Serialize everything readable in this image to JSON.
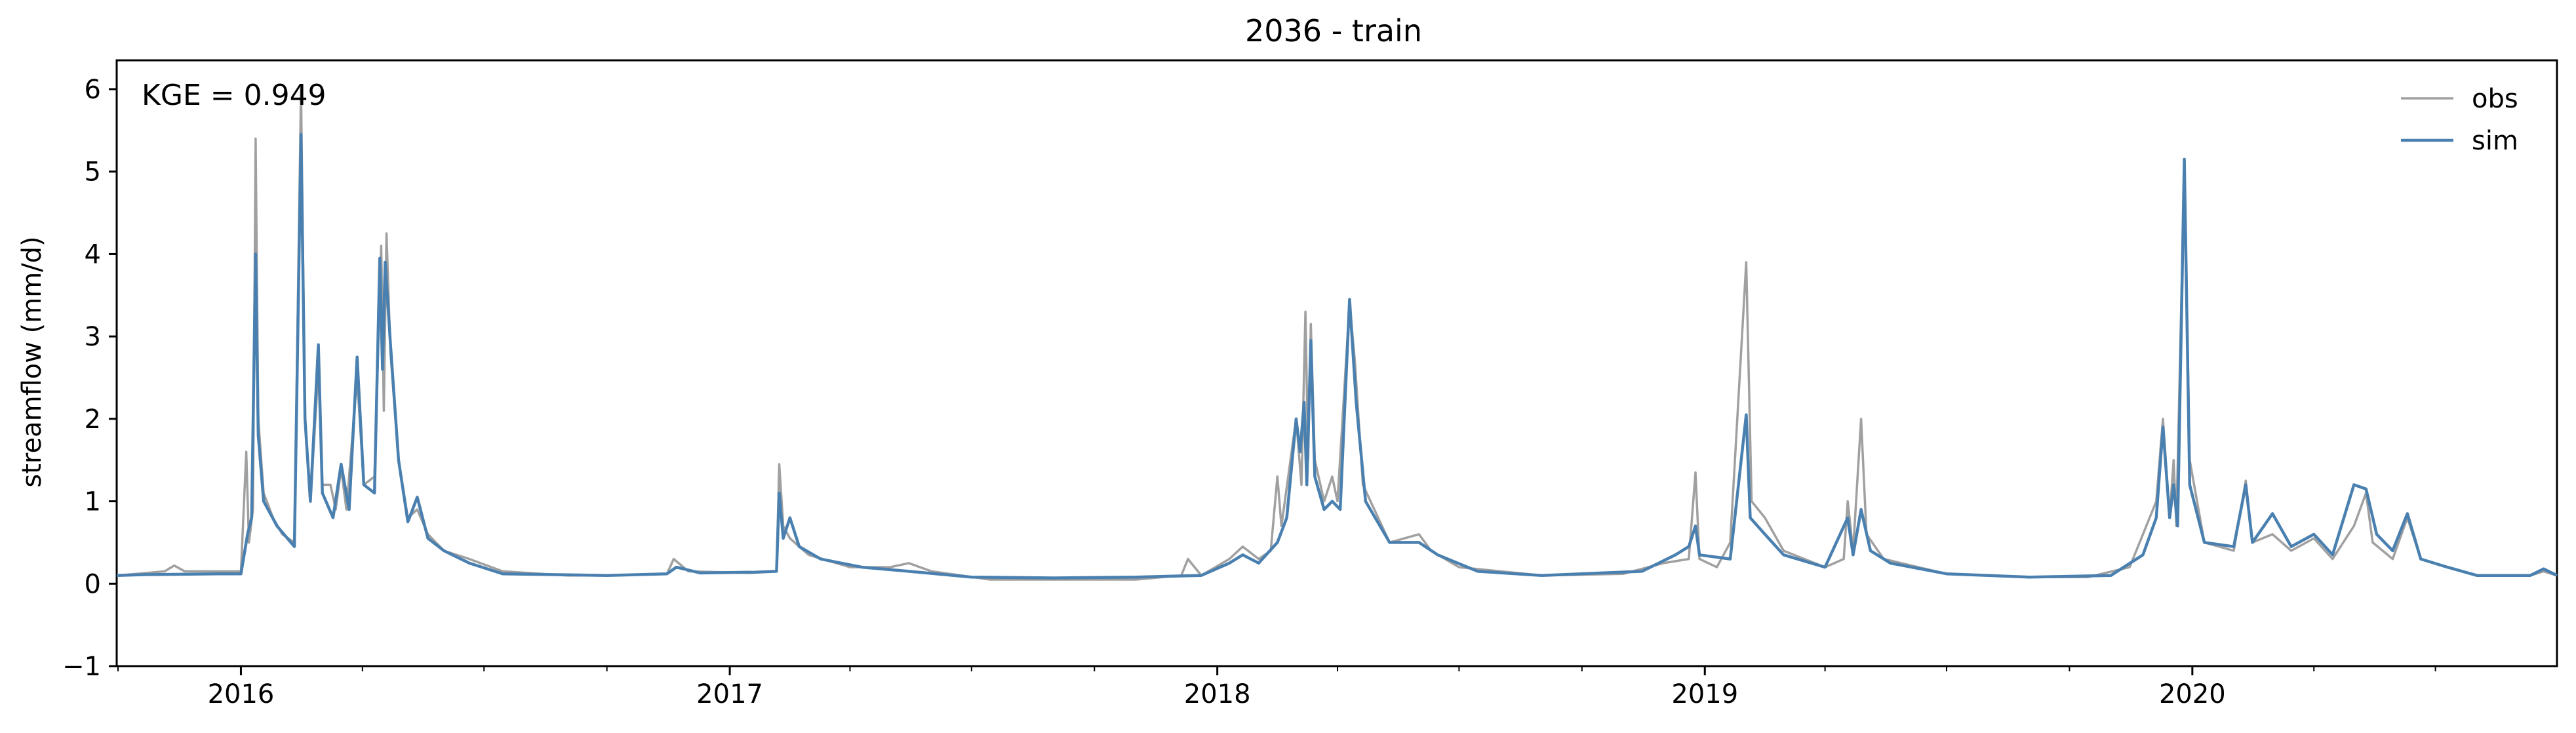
{
  "chart_data": {
    "type": "line",
    "title": "2036 - train",
    "ylabel": "streamflow (mm/d)",
    "xlabel": "",
    "annotation": "KGE = 0.949",
    "xlim": [
      "2015-09-30",
      "2020-09-30"
    ],
    "ylim": [
      -1,
      6.35
    ],
    "yticks": [
      -1,
      0,
      1,
      2,
      3,
      4,
      5,
      6
    ],
    "ytick_labels": [
      "−1",
      "0",
      "1",
      "2",
      "3",
      "4",
      "5",
      "6"
    ],
    "xticks": [
      "2016-01-01",
      "2017-01-01",
      "2018-01-01",
      "2019-01-01",
      "2020-01-01"
    ],
    "xtick_labels": [
      "2016",
      "2017",
      "2018",
      "2019",
      "2020"
    ],
    "legend_position": "top-right",
    "grid": false,
    "series": [
      {
        "name": "obs",
        "color": "#a0a0a0",
        "points": [
          [
            "2015-09-30",
            0.1
          ],
          [
            "2015-10-15",
            0.12
          ],
          [
            "2015-11-05",
            0.15
          ],
          [
            "2015-11-12",
            0.22
          ],
          [
            "2015-11-20",
            0.15
          ],
          [
            "2015-12-10",
            0.15
          ],
          [
            "2016-01-01",
            0.15
          ],
          [
            "2016-01-05",
            1.6
          ],
          [
            "2016-01-07",
            0.5
          ],
          [
            "2016-01-10",
            0.9
          ],
          [
            "2016-01-12",
            5.4
          ],
          [
            "2016-01-14",
            2.0
          ],
          [
            "2016-01-18",
            1.1
          ],
          [
            "2016-01-25",
            0.8
          ],
          [
            "2016-02-01",
            0.6
          ],
          [
            "2016-02-10",
            0.5
          ],
          [
            "2016-02-15",
            6.0
          ],
          [
            "2016-02-18",
            2.0
          ],
          [
            "2016-02-22",
            1.0
          ],
          [
            "2016-02-28",
            2.6
          ],
          [
            "2016-03-02",
            1.2
          ],
          [
            "2016-03-08",
            1.2
          ],
          [
            "2016-03-12",
            0.9
          ],
          [
            "2016-03-16",
            1.4
          ],
          [
            "2016-03-20",
            0.9
          ],
          [
            "2016-03-28",
            2.5
          ],
          [
            "2016-04-02",
            1.2
          ],
          [
            "2016-04-10",
            1.3
          ],
          [
            "2016-04-15",
            4.1
          ],
          [
            "2016-04-17",
            2.1
          ],
          [
            "2016-04-19",
            4.25
          ],
          [
            "2016-04-22",
            2.8
          ],
          [
            "2016-04-28",
            1.5
          ],
          [
            "2016-05-05",
            0.8
          ],
          [
            "2016-05-12",
            0.9
          ],
          [
            "2016-05-20",
            0.6
          ],
          [
            "2016-06-01",
            0.4
          ],
          [
            "2016-06-20",
            0.3
          ],
          [
            "2016-07-15",
            0.15
          ],
          [
            "2016-09-01",
            0.1
          ],
          [
            "2016-10-01",
            0.1
          ],
          [
            "2016-11-15",
            0.12
          ],
          [
            "2016-11-20",
            0.3
          ],
          [
            "2016-12-01",
            0.15
          ],
          [
            "2017-01-15",
            0.13
          ],
          [
            "2017-02-05",
            0.15
          ],
          [
            "2017-02-07",
            1.45
          ],
          [
            "2017-02-10",
            0.7
          ],
          [
            "2017-02-15",
            0.55
          ],
          [
            "2017-03-01",
            0.35
          ],
          [
            "2017-04-01",
            0.2
          ],
          [
            "2017-05-01",
            0.2
          ],
          [
            "2017-05-15",
            0.25
          ],
          [
            "2017-06-01",
            0.15
          ],
          [
            "2017-07-15",
            0.05
          ],
          [
            "2017-09-01",
            0.05
          ],
          [
            "2017-11-01",
            0.05
          ],
          [
            "2017-12-05",
            0.1
          ],
          [
            "2017-12-10",
            0.3
          ],
          [
            "2017-12-20",
            0.1
          ],
          [
            "2018-01-10",
            0.3
          ],
          [
            "2018-01-20",
            0.45
          ],
          [
            "2018-02-01",
            0.3
          ],
          [
            "2018-02-10",
            0.4
          ],
          [
            "2018-02-15",
            1.3
          ],
          [
            "2018-02-18",
            0.7
          ],
          [
            "2018-03-01",
            2.0
          ],
          [
            "2018-03-05",
            1.2
          ],
          [
            "2018-03-08",
            3.3
          ],
          [
            "2018-03-10",
            1.5
          ],
          [
            "2018-03-12",
            3.15
          ],
          [
            "2018-03-15",
            1.5
          ],
          [
            "2018-03-22",
            1.0
          ],
          [
            "2018-03-28",
            1.3
          ],
          [
            "2018-04-01",
            1.0
          ],
          [
            "2018-04-10",
            3.4
          ],
          [
            "2018-04-14",
            2.7
          ],
          [
            "2018-04-20",
            1.2
          ],
          [
            "2018-05-10",
            0.5
          ],
          [
            "2018-06-01",
            0.6
          ],
          [
            "2018-06-10",
            0.4
          ],
          [
            "2018-07-01",
            0.2
          ],
          [
            "2018-09-01",
            0.1
          ],
          [
            "2018-11-01",
            0.12
          ],
          [
            "2018-12-01",
            0.25
          ],
          [
            "2018-12-20",
            0.3
          ],
          [
            "2018-12-25",
            1.35
          ],
          [
            "2018-12-28",
            0.3
          ],
          [
            "2019-01-10",
            0.2
          ],
          [
            "2019-01-20",
            0.5
          ],
          [
            "2019-02-01",
            3.9
          ],
          [
            "2019-02-05",
            1.0
          ],
          [
            "2019-02-15",
            0.8
          ],
          [
            "2019-03-01",
            0.4
          ],
          [
            "2019-04-01",
            0.2
          ],
          [
            "2019-04-15",
            0.3
          ],
          [
            "2019-04-18",
            1.0
          ],
          [
            "2019-04-22",
            0.4
          ],
          [
            "2019-04-28",
            2.0
          ],
          [
            "2019-05-02",
            0.6
          ],
          [
            "2019-05-15",
            0.3
          ],
          [
            "2019-07-01",
            0.12
          ],
          [
            "2019-09-01",
            0.08
          ],
          [
            "2019-10-15",
            0.08
          ],
          [
            "2019-11-15",
            0.2
          ],
          [
            "2019-11-25",
            0.6
          ],
          [
            "2019-12-05",
            1.0
          ],
          [
            "2019-12-10",
            2.0
          ],
          [
            "2019-12-15",
            0.8
          ],
          [
            "2019-12-18",
            1.5
          ],
          [
            "2019-12-20",
            0.7
          ],
          [
            "2019-12-26",
            5.05
          ],
          [
            "2019-12-30",
            1.5
          ],
          [
            "2020-01-10",
            0.5
          ],
          [
            "2020-02-01",
            0.4
          ],
          [
            "2020-02-10",
            1.25
          ],
          [
            "2020-02-15",
            0.5
          ],
          [
            "2020-03-01",
            0.6
          ],
          [
            "2020-03-15",
            0.4
          ],
          [
            "2020-04-01",
            0.55
          ],
          [
            "2020-04-15",
            0.3
          ],
          [
            "2020-05-01",
            0.7
          ],
          [
            "2020-05-10",
            1.1
          ],
          [
            "2020-05-15",
            0.5
          ],
          [
            "2020-05-30",
            0.3
          ],
          [
            "2020-06-10",
            0.8
          ],
          [
            "2020-06-20",
            0.3
          ],
          [
            "2020-07-10",
            0.2
          ],
          [
            "2020-08-01",
            0.1
          ],
          [
            "2020-09-10",
            0.1
          ],
          [
            "2020-09-20",
            0.15
          ],
          [
            "2020-09-30",
            0.1
          ]
        ]
      },
      {
        "name": "sim",
        "color": "#4a80b0",
        "points": [
          [
            "2015-09-30",
            0.1
          ],
          [
            "2015-10-20",
            0.11
          ],
          [
            "2015-12-15",
            0.12
          ],
          [
            "2016-01-01",
            0.12
          ],
          [
            "2016-01-06",
            0.6
          ],
          [
            "2016-01-09",
            0.8
          ],
          [
            "2016-01-12",
            4.0
          ],
          [
            "2016-01-14",
            1.8
          ],
          [
            "2016-01-18",
            1.0
          ],
          [
            "2016-01-28",
            0.7
          ],
          [
            "2016-02-10",
            0.45
          ],
          [
            "2016-02-15",
            5.45
          ],
          [
            "2016-02-18",
            2.0
          ],
          [
            "2016-02-22",
            1.0
          ],
          [
            "2016-02-28",
            2.9
          ],
          [
            "2016-03-02",
            1.1
          ],
          [
            "2016-03-10",
            0.8
          ],
          [
            "2016-03-16",
            1.45
          ],
          [
            "2016-03-22",
            0.9
          ],
          [
            "2016-03-28",
            2.75
          ],
          [
            "2016-04-02",
            1.2
          ],
          [
            "2016-04-10",
            1.1
          ],
          [
            "2016-04-14",
            3.95
          ],
          [
            "2016-04-16",
            2.6
          ],
          [
            "2016-04-18",
            3.9
          ],
          [
            "2016-04-22",
            2.9
          ],
          [
            "2016-04-28",
            1.5
          ],
          [
            "2016-05-05",
            0.75
          ],
          [
            "2016-05-12",
            1.05
          ],
          [
            "2016-05-20",
            0.55
          ],
          [
            "2016-06-01",
            0.4
          ],
          [
            "2016-06-20",
            0.25
          ],
          [
            "2016-07-15",
            0.12
          ],
          [
            "2016-10-01",
            0.1
          ],
          [
            "2016-11-15",
            0.12
          ],
          [
            "2016-11-22",
            0.2
          ],
          [
            "2016-12-10",
            0.13
          ],
          [
            "2017-01-20",
            0.14
          ],
          [
            "2017-02-05",
            0.15
          ],
          [
            "2017-02-07",
            1.1
          ],
          [
            "2017-02-10",
            0.55
          ],
          [
            "2017-02-15",
            0.8
          ],
          [
            "2017-02-22",
            0.45
          ],
          [
            "2017-03-10",
            0.3
          ],
          [
            "2017-04-10",
            0.2
          ],
          [
            "2017-05-15",
            0.15
          ],
          [
            "2017-07-01",
            0.08
          ],
          [
            "2017-09-01",
            0.07
          ],
          [
            "2017-11-01",
            0.08
          ],
          [
            "2017-12-20",
            0.1
          ],
          [
            "2018-01-10",
            0.25
          ],
          [
            "2018-01-20",
            0.35
          ],
          [
            "2018-02-01",
            0.25
          ],
          [
            "2018-02-15",
            0.5
          ],
          [
            "2018-02-22",
            0.8
          ],
          [
            "2018-03-01",
            2.0
          ],
          [
            "2018-03-04",
            1.6
          ],
          [
            "2018-03-07",
            2.2
          ],
          [
            "2018-03-09",
            1.2
          ],
          [
            "2018-03-12",
            2.95
          ],
          [
            "2018-03-15",
            1.3
          ],
          [
            "2018-03-22",
            0.9
          ],
          [
            "2018-03-28",
            1.0
          ],
          [
            "2018-04-03",
            0.9
          ],
          [
            "2018-04-10",
            3.45
          ],
          [
            "2018-04-15",
            2.2
          ],
          [
            "2018-04-22",
            1.0
          ],
          [
            "2018-05-10",
            0.5
          ],
          [
            "2018-06-01",
            0.5
          ],
          [
            "2018-06-15",
            0.35
          ],
          [
            "2018-07-15",
            0.15
          ],
          [
            "2018-09-01",
            0.1
          ],
          [
            "2018-11-15",
            0.15
          ],
          [
            "2018-12-10",
            0.35
          ],
          [
            "2018-12-20",
            0.45
          ],
          [
            "2018-12-25",
            0.7
          ],
          [
            "2018-12-28",
            0.35
          ],
          [
            "2019-01-20",
            0.3
          ],
          [
            "2019-02-01",
            2.05
          ],
          [
            "2019-02-04",
            0.8
          ],
          [
            "2019-02-15",
            0.6
          ],
          [
            "2019-03-01",
            0.35
          ],
          [
            "2019-04-01",
            0.2
          ],
          [
            "2019-04-18",
            0.8
          ],
          [
            "2019-04-22",
            0.35
          ],
          [
            "2019-04-28",
            0.9
          ],
          [
            "2019-05-05",
            0.4
          ],
          [
            "2019-05-20",
            0.25
          ],
          [
            "2019-07-01",
            0.12
          ],
          [
            "2019-09-01",
            0.08
          ],
          [
            "2019-11-01",
            0.1
          ],
          [
            "2019-11-25",
            0.35
          ],
          [
            "2019-12-05",
            0.8
          ],
          [
            "2019-12-10",
            1.9
          ],
          [
            "2019-12-15",
            0.8
          ],
          [
            "2019-12-18",
            1.2
          ],
          [
            "2019-12-21",
            0.7
          ],
          [
            "2019-12-26",
            5.15
          ],
          [
            "2019-12-30",
            1.2
          ],
          [
            "2020-01-10",
            0.5
          ],
          [
            "2020-02-01",
            0.45
          ],
          [
            "2020-02-10",
            1.2
          ],
          [
            "2020-02-15",
            0.5
          ],
          [
            "2020-03-01",
            0.85
          ],
          [
            "2020-03-15",
            0.45
          ],
          [
            "2020-04-01",
            0.6
          ],
          [
            "2020-04-15",
            0.35
          ],
          [
            "2020-05-01",
            1.2
          ],
          [
            "2020-05-10",
            1.15
          ],
          [
            "2020-05-18",
            0.6
          ],
          [
            "2020-05-30",
            0.4
          ],
          [
            "2020-06-10",
            0.85
          ],
          [
            "2020-06-20",
            0.3
          ],
          [
            "2020-07-10",
            0.2
          ],
          [
            "2020-08-01",
            0.1
          ],
          [
            "2020-09-10",
            0.1
          ],
          [
            "2020-09-20",
            0.18
          ],
          [
            "2020-09-30",
            0.1
          ]
        ]
      }
    ]
  }
}
